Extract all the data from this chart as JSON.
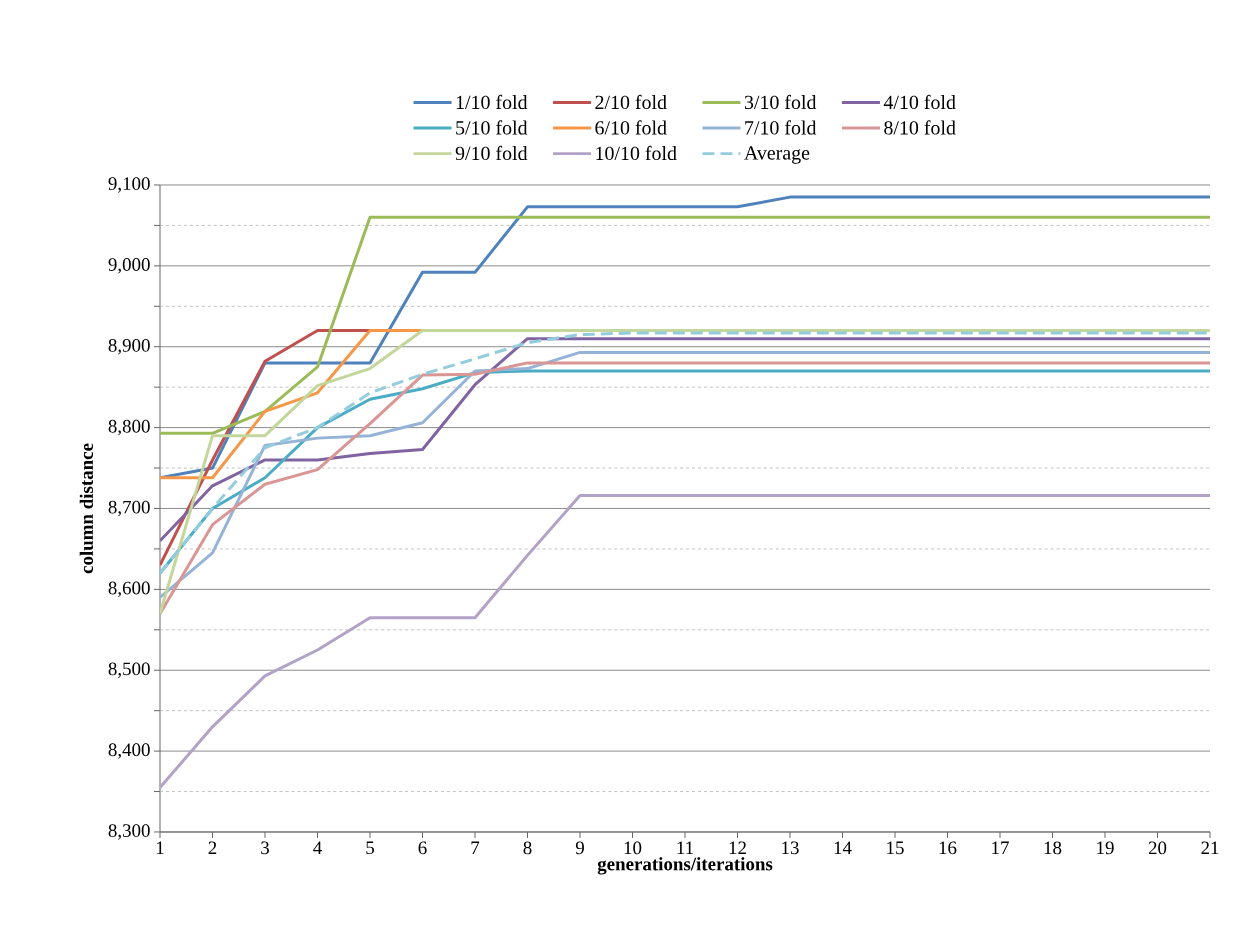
{
  "chart_data": {
    "type": "line",
    "xlabel": "generations/iterations",
    "ylabel": "column distance",
    "categories": [
      "1",
      "2",
      "3",
      "4",
      "5",
      "6",
      "7",
      "8",
      "9",
      "10",
      "11",
      "12",
      "13",
      "14",
      "15",
      "16",
      "17",
      "18",
      "19",
      "20",
      "21"
    ],
    "ylim": [
      8300,
      9100
    ],
    "yticks": [
      {
        "value": 8300,
        "label": "8,300"
      },
      {
        "value": 8350,
        "label": null
      },
      {
        "value": 8400,
        "label": "8,400"
      },
      {
        "value": 8450,
        "label": null
      },
      {
        "value": 8500,
        "label": "8,500"
      },
      {
        "value": 8550,
        "label": null
      },
      {
        "value": 8600,
        "label": "8,600"
      },
      {
        "value": 8650,
        "label": null
      },
      {
        "value": 8700,
        "label": "8,700"
      },
      {
        "value": 8750,
        "label": null
      },
      {
        "value": 8800,
        "label": "8,800"
      },
      {
        "value": 8850,
        "label": null
      },
      {
        "value": 8900,
        "label": "8,900"
      },
      {
        "value": 8950,
        "label": null
      },
      {
        "value": 9000,
        "label": "9,000"
      },
      {
        "value": 9050,
        "label": null
      },
      {
        "value": 9100,
        "label": "9,100"
      }
    ],
    "grid": "y",
    "legend": "top",
    "marker": "none",
    "series": [
      {
        "name": "1/10 fold",
        "color": "#4f81bd",
        "values": [
          8738,
          8750,
          8880,
          8880,
          8880,
          8992,
          8992,
          9073,
          9073,
          9073,
          9073,
          9073,
          9085,
          9085,
          9085,
          9085,
          9085,
          9085,
          9085,
          9085,
          9085
        ]
      },
      {
        "name": "2/10 fold",
        "color": "#c0504d",
        "values": [
          8630,
          8760,
          8882,
          8920,
          8920,
          null,
          null,
          null,
          null,
          null,
          null,
          null,
          null,
          null,
          null,
          null,
          null,
          null,
          null,
          null,
          null
        ]
      },
      {
        "name": "3/10 fold",
        "color": "#9bbb59",
        "values": [
          8793,
          8793,
          8820,
          8875,
          9060,
          9060,
          9060,
          9060,
          9060,
          9060,
          9060,
          9060,
          9060,
          9060,
          9060,
          9060,
          9060,
          9060,
          9060,
          9060,
          9060
        ]
      },
      {
        "name": "4/10 fold",
        "color": "#8064a2",
        "values": [
          8660,
          8728,
          8760,
          8760,
          8768,
          8773,
          8853,
          8910,
          8910,
          8910,
          8910,
          8910,
          8910,
          8910,
          8910,
          8910,
          8910,
          8910,
          8910,
          8910,
          8910
        ]
      },
      {
        "name": "5/10 fold",
        "color": "#4bacc6",
        "values": [
          8620,
          8700,
          8738,
          8800,
          8835,
          8848,
          8868,
          8870,
          8870,
          8870,
          8870,
          8870,
          8870,
          8870,
          8870,
          8870,
          8870,
          8870,
          8870,
          8870,
          8870
        ]
      },
      {
        "name": "6/10 fold",
        "color": "#f79646",
        "values": [
          8738,
          8738,
          8820,
          8843,
          8920,
          8920,
          null,
          null,
          null,
          null,
          null,
          null,
          null,
          null,
          null,
          null,
          null,
          null,
          null,
          null,
          null
        ]
      },
      {
        "name": "7/10 fold",
        "color": "#95b3d7",
        "values": [
          8590,
          8645,
          8778,
          8787,
          8790,
          8806,
          8870,
          8873,
          8893,
          8893,
          8893,
          8893,
          8893,
          8893,
          8893,
          8893,
          8893,
          8893,
          8893,
          8893,
          8893
        ]
      },
      {
        "name": "8/10 fold",
        "color": "#d99694",
        "values": [
          8570,
          8680,
          8730,
          8748,
          8805,
          8865,
          8866,
          8880,
          8880,
          8880,
          8880,
          8880,
          8880,
          8880,
          8880,
          8880,
          8880,
          8880,
          8880,
          8880,
          8880
        ]
      },
      {
        "name": "9/10 fold",
        "color": "#c3d69b",
        "values": [
          8570,
          8790,
          8790,
          8852,
          8873,
          8920,
          8920,
          8920,
          8920,
          8920,
          8920,
          8920,
          8920,
          8920,
          8920,
          8920,
          8920,
          8920,
          8920,
          8920,
          8920
        ]
      },
      {
        "name": "10/10 fold",
        "color": "#b3a2c7",
        "values": [
          8355,
          8430,
          8493,
          8525,
          8565,
          8565,
          8565,
          8642,
          8716,
          8716,
          8716,
          8716,
          8716,
          8716,
          8716,
          8716,
          8716,
          8716,
          8716,
          8716,
          8716
        ]
      },
      {
        "name": "Average",
        "color": "#93cddd",
        "line_style": "dashed",
        "values": [
          8620,
          8700,
          8775,
          8800,
          8843,
          8866,
          8885,
          8905,
          8915,
          8917,
          8917,
          8917,
          8917,
          8917,
          8917,
          8917,
          8917,
          8917,
          8917,
          8917,
          8917
        ]
      }
    ]
  }
}
